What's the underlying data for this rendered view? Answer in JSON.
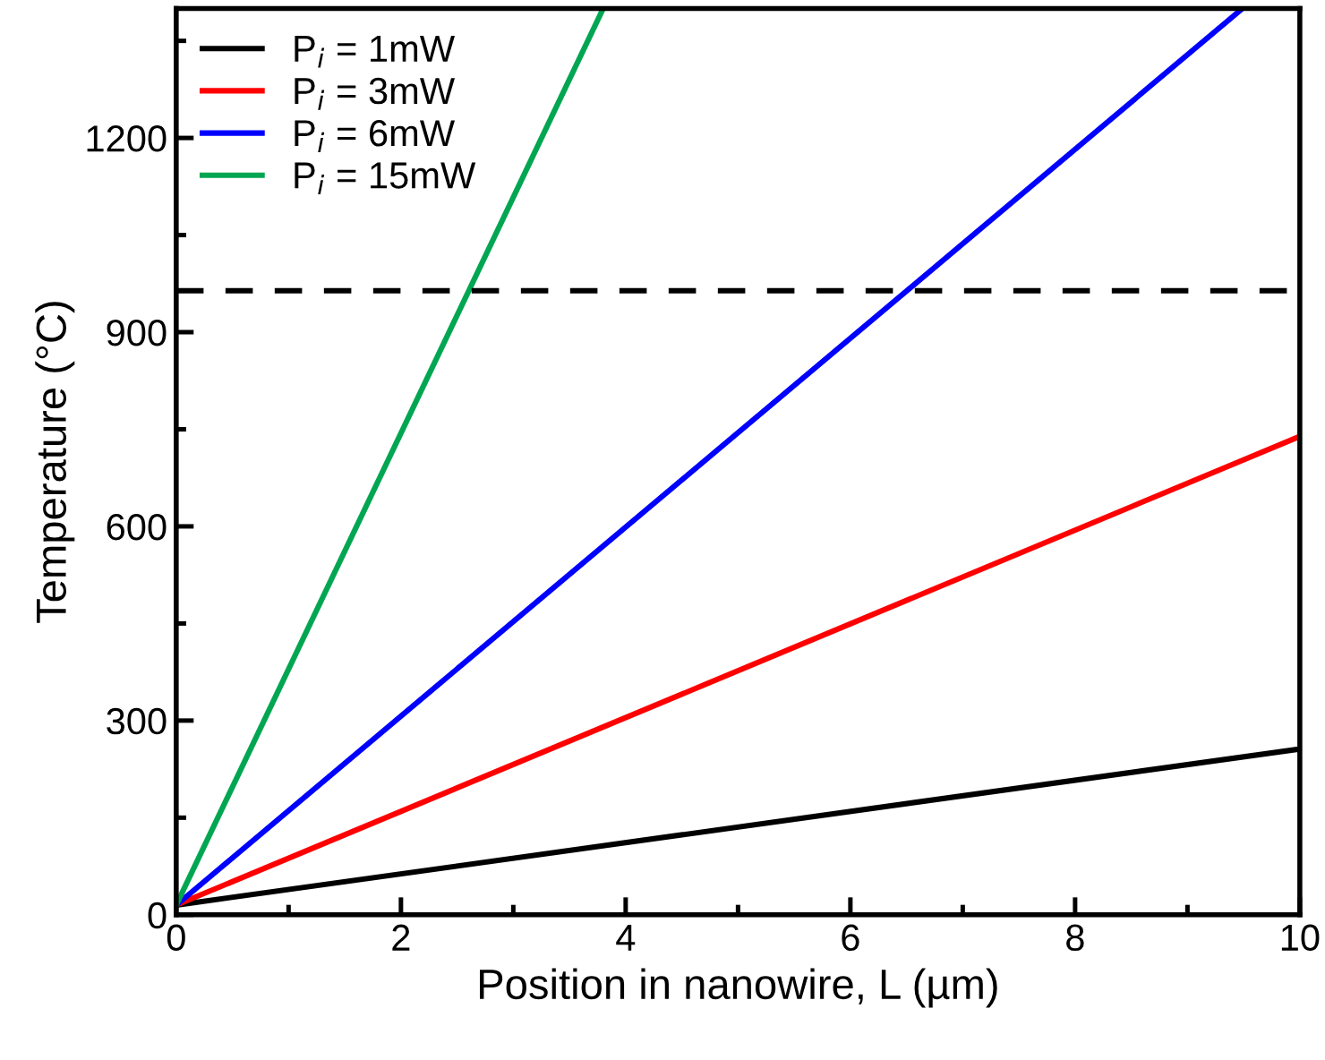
{
  "chart_data": {
    "type": "line",
    "xlabel": "Position in nanowire, L (µm)",
    "ylabel": "Temperature (°C)",
    "xlim": [
      0,
      10
    ],
    "ylim": [
      0,
      1400
    ],
    "xticks": [
      0,
      2,
      4,
      6,
      8,
      10
    ],
    "yticks": [
      0,
      300,
      600,
      900,
      1200
    ],
    "series": [
      {
        "name": "P$_{i}$ = 1mW",
        "color": "#000000",
        "x": [
          0,
          10
        ],
        "values": [
          15,
          256
        ]
      },
      {
        "name": "P$_{i}$ = 3mW",
        "color": "#ff0000",
        "x": [
          0,
          10
        ],
        "values": [
          15,
          739
        ]
      },
      {
        "name": "P$_{i}$ = 6mW",
        "color": "#0000ff",
        "x": [
          0,
          9.49
        ],
        "values": [
          15,
          1400
        ]
      },
      {
        "name": "P$_{i}$ = 15mW",
        "color": "#00a651",
        "x": [
          0,
          3.8
        ],
        "values": [
          15,
          1400
        ]
      }
    ],
    "ref_lines": [
      {
        "axis": "y",
        "value": 964,
        "color": "#000000",
        "line_style": "dashed"
      }
    ],
    "legend": "top left",
    "grid": false,
    "marker": "none",
    "line_style": "solid"
  }
}
